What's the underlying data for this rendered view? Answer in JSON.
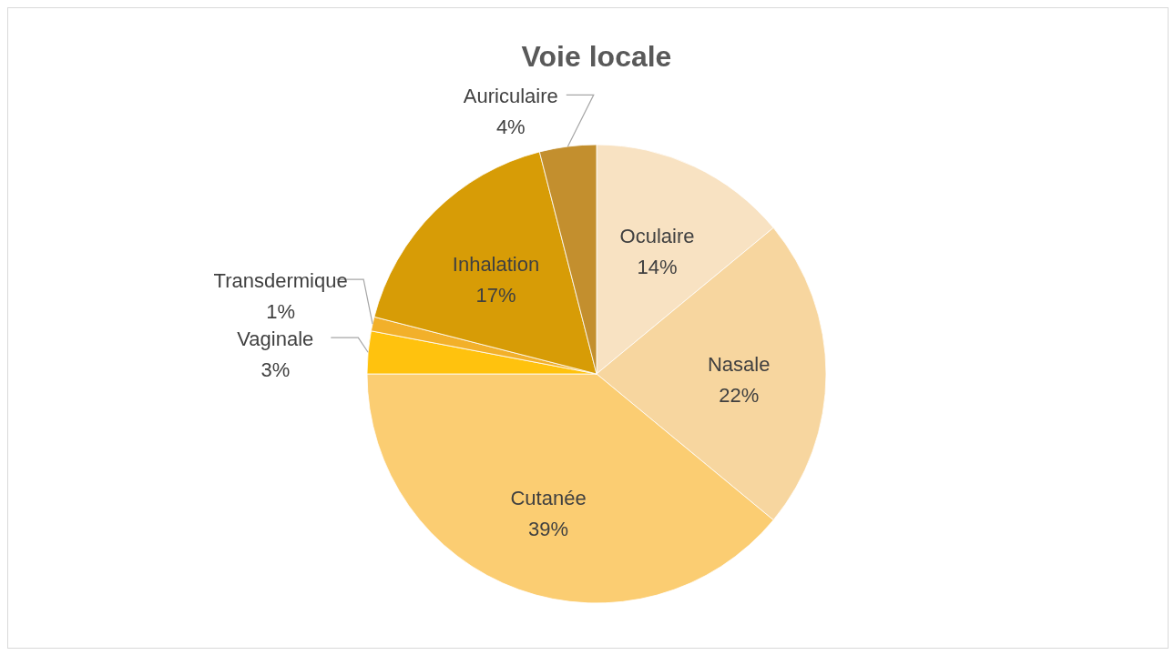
{
  "chart_data": {
    "type": "pie",
    "title": "Voie locale",
    "categories": [
      "Oculaire",
      "Nasale",
      "Cutanée",
      "Vaginale",
      "Transdermique",
      "Inhalation",
      "Auriculaire"
    ],
    "values": [
      14,
      22,
      39,
      3,
      1,
      17,
      4
    ],
    "value_labels": [
      "14%",
      "22%",
      "39%",
      "3%",
      "1%",
      "17%",
      "4%"
    ],
    "colors": [
      "#f8e2c2",
      "#f7d69f",
      "#fbcd72",
      "#ffc20e",
      "#f2b02a",
      "#d79c06",
      "#c38f2e"
    ]
  }
}
